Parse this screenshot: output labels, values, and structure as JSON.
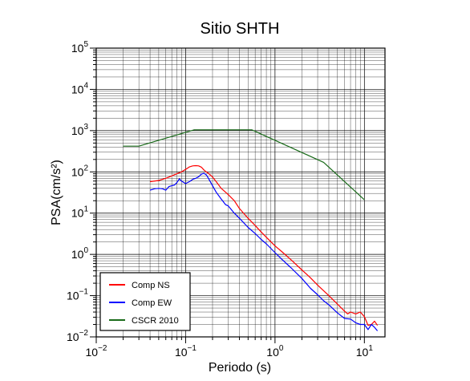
{
  "chart_data": {
    "type": "line",
    "title": "Sitio SHTH",
    "xlabel": "Periodo (s)",
    "ylabel": "PSA(cm/s²)",
    "xscale": "log",
    "yscale": "log",
    "xlim": [
      0.01,
      17
    ],
    "ylim": [
      0.01,
      100000
    ],
    "grid": true,
    "legend_position": "bottom-left",
    "x_ticks": [
      {
        "base": "10",
        "exp": "−2"
      },
      {
        "base": "10",
        "exp": "−1"
      },
      {
        "base": "10",
        "exp": "0"
      },
      {
        "base": "10",
        "exp": "1"
      }
    ],
    "y_ticks": [
      {
        "base": "10",
        "exp": "−2"
      },
      {
        "base": "10",
        "exp": "−1"
      },
      {
        "base": "10",
        "exp": "0"
      },
      {
        "base": "10",
        "exp": "1"
      },
      {
        "base": "10",
        "exp": "2"
      },
      {
        "base": "10",
        "exp": "3"
      },
      {
        "base": "10",
        "exp": "4"
      },
      {
        "base": "10",
        "exp": "5"
      }
    ],
    "series": [
      {
        "name": "Comp NS",
        "color": "#ff0000",
        "x": [
          0.04,
          0.05,
          0.06,
          0.07,
          0.08,
          0.09,
          0.1,
          0.11,
          0.12,
          0.13,
          0.14,
          0.15,
          0.16,
          0.17,
          0.18,
          0.2,
          0.22,
          0.25,
          0.28,
          0.3,
          0.35,
          0.4,
          0.5,
          0.6,
          0.7,
          0.8,
          1.0,
          1.2,
          1.5,
          2.0,
          2.5,
          3.0,
          4.0,
          5.0,
          6.0,
          6.5,
          7.0,
          8.0,
          9.0,
          10.0,
          10.5,
          11.0,
          12.0,
          13.0,
          14.0
        ],
        "y": [
          58,
          62,
          70,
          80,
          90,
          100,
          115,
          132,
          140,
          142,
          140,
          130,
          112,
          100,
          92,
          75,
          58,
          40,
          32,
          28,
          20,
          13,
          7.5,
          5.0,
          3.5,
          2.6,
          1.6,
          1.15,
          0.75,
          0.42,
          0.27,
          0.18,
          0.1,
          0.062,
          0.042,
          0.036,
          0.04,
          0.036,
          0.04,
          0.031,
          0.024,
          0.019,
          0.02,
          0.024,
          0.019
        ]
      },
      {
        "name": "Comp EW",
        "color": "#0000ff",
        "x": [
          0.04,
          0.045,
          0.05,
          0.055,
          0.06,
          0.065,
          0.07,
          0.075,
          0.08,
          0.085,
          0.09,
          0.1,
          0.11,
          0.12,
          0.13,
          0.14,
          0.15,
          0.16,
          0.17,
          0.18,
          0.2,
          0.22,
          0.25,
          0.28,
          0.3,
          0.35,
          0.4,
          0.5,
          0.6,
          0.7,
          0.8,
          1.0,
          1.2,
          1.5,
          2.0,
          2.5,
          3.0,
          3.5,
          4.0,
          5.0,
          6.0,
          7.0,
          8.0,
          9.0,
          10.0,
          11.0,
          12.0,
          13.0,
          14.0
        ],
        "y": [
          36,
          39,
          40,
          39,
          36,
          44,
          46,
          48,
          55,
          68,
          60,
          52,
          58,
          66,
          70,
          76,
          88,
          92,
          85,
          70,
          46,
          32,
          22,
          16,
          15,
          10,
          7.5,
          4.5,
          3.2,
          2.3,
          1.8,
          1.1,
          0.75,
          0.48,
          0.26,
          0.15,
          0.105,
          0.075,
          0.06,
          0.038,
          0.028,
          0.027,
          0.022,
          0.02,
          0.02,
          0.015,
          0.02,
          0.017,
          0.014
        ]
      },
      {
        "name": "CSCR 2010",
        "color": "#1a6b1a",
        "x": [
          0.02,
          0.03,
          0.125,
          0.55,
          3.5,
          10.0
        ],
        "y": [
          420,
          420,
          1050,
          1050,
          170,
          21
        ]
      }
    ]
  }
}
